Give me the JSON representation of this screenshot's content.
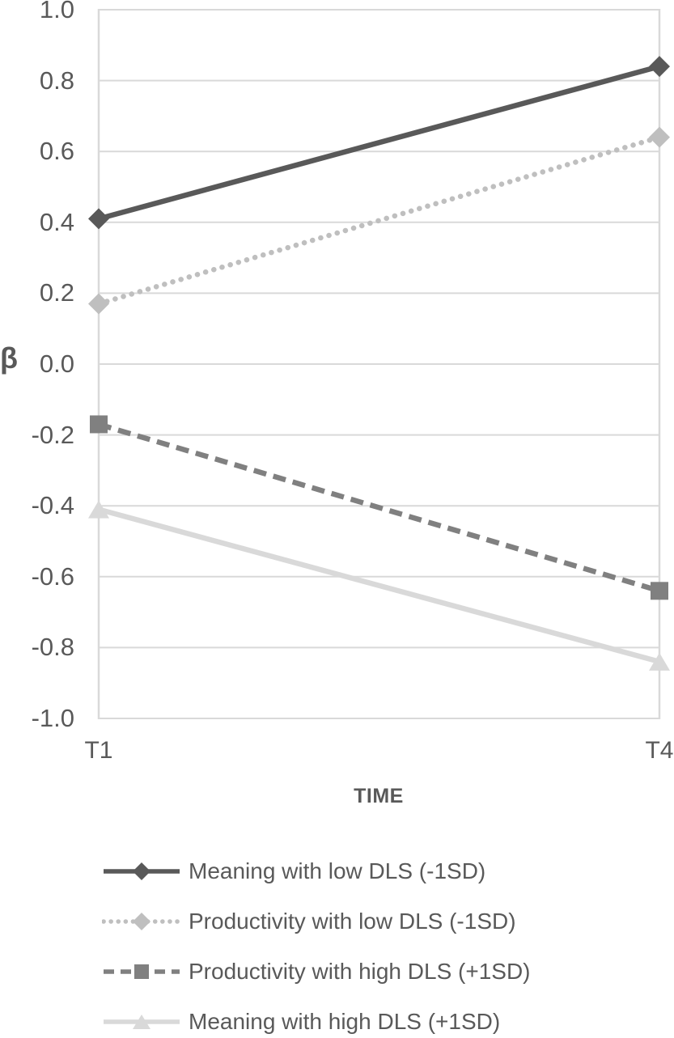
{
  "figure": {
    "background": "#ffffff"
  },
  "colors": {
    "gridline": "#d9d9d9",
    "axis_border": "#d9d9d9",
    "tick_text": "#595959",
    "axis_title_text": "#595959",
    "legend_text": "#595959"
  },
  "chart_data": {
    "type": "line",
    "categories": [
      "T1",
      "T4"
    ],
    "xlabel": "TIME",
    "ylabel": "β",
    "ylim": [
      -1.0,
      1.0
    ],
    "ytick_step": 0.2,
    "yticks": [
      "1.0",
      "0.8",
      "0.6",
      "0.4",
      "0.2",
      "0.0",
      "-0.2",
      "-0.4",
      "-0.6",
      "-0.8",
      "-1.0"
    ],
    "grid": true,
    "legend_position": "bottom-left",
    "series": [
      {
        "name": "Meaning with low DLS (-1SD)",
        "values": [
          0.41,
          0.84
        ],
        "color": "#595959",
        "line_style": "solid",
        "marker": "diamond"
      },
      {
        "name": "Productivity with low DLS (-1SD)",
        "values": [
          0.17,
          0.64
        ],
        "color": "#bfbfbf",
        "line_style": "dotted",
        "marker": "diamond"
      },
      {
        "name": "Productivity with high DLS (+1SD)",
        "values": [
          -0.17,
          -0.64
        ],
        "color": "#808080",
        "line_style": "dashed",
        "marker": "square"
      },
      {
        "name": "Meaning with high DLS (+1SD)",
        "values": [
          -0.41,
          -0.84
        ],
        "color": "#d9d9d9",
        "line_style": "solid",
        "marker": "triangle"
      }
    ]
  }
}
